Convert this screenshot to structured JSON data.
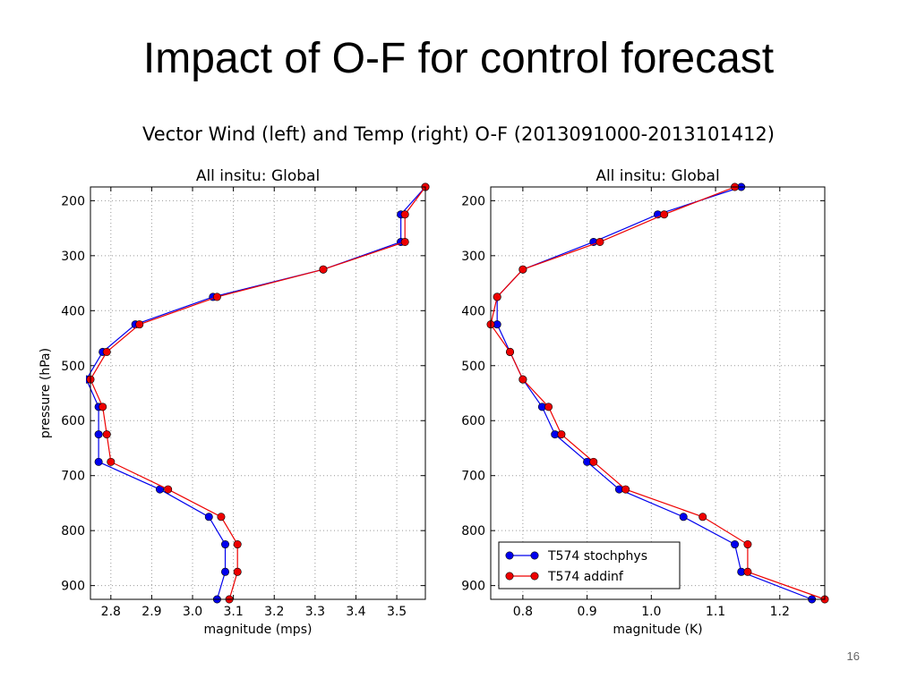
{
  "slide": {
    "title": "Impact of O-F for control forecast",
    "page_number": "16"
  },
  "figure": {
    "title": "Vector Wind (left) and Temp (right) O-F (2013091000-2013101412)"
  },
  "colors": {
    "series_blue": "#0000ee",
    "series_red": "#ee0000",
    "grid": "#999999"
  },
  "chart_data": [
    {
      "type": "line",
      "title": "All insitu: Global",
      "xlabel": "magnitude (mps)",
      "ylabel": "pressure (hPa)",
      "xlim": [
        2.75,
        3.57
      ],
      "ylim": [
        925,
        175
      ],
      "y_inverted": true,
      "grid": true,
      "xticks": [
        "2.8",
        "2.9",
        "3.0",
        "3.1",
        "3.2",
        "3.3",
        "3.4",
        "3.5"
      ],
      "yticks": [
        "200",
        "300",
        "400",
        "500",
        "600",
        "700",
        "800",
        "900"
      ],
      "series": [
        {
          "name": "T574 stochphys",
          "color": "#0000ee",
          "points": [
            [
              3.57,
              175
            ],
            [
              3.51,
              225
            ],
            [
              3.51,
              275
            ],
            [
              3.32,
              325
            ],
            [
              3.05,
              375
            ],
            [
              2.86,
              425
            ],
            [
              2.78,
              475
            ],
            [
              2.74,
              525
            ],
            [
              2.77,
              575
            ],
            [
              2.77,
              625
            ],
            [
              2.77,
              675
            ],
            [
              2.92,
              725
            ],
            [
              3.04,
              775
            ],
            [
              3.08,
              825
            ],
            [
              3.08,
              875
            ],
            [
              3.06,
              925
            ]
          ]
        },
        {
          "name": "T574 addinf",
          "color": "#ee0000",
          "points": [
            [
              3.57,
              175
            ],
            [
              3.52,
              225
            ],
            [
              3.52,
              275
            ],
            [
              3.32,
              325
            ],
            [
              3.06,
              375
            ],
            [
              2.87,
              425
            ],
            [
              2.79,
              475
            ],
            [
              2.75,
              525
            ],
            [
              2.78,
              575
            ],
            [
              2.79,
              625
            ],
            [
              2.8,
              675
            ],
            [
              2.94,
              725
            ],
            [
              3.07,
              775
            ],
            [
              3.11,
              825
            ],
            [
              3.11,
              875
            ],
            [
              3.09,
              925
            ]
          ]
        }
      ]
    },
    {
      "type": "line",
      "title": "All insitu: Global",
      "xlabel": "magnitude (K)",
      "ylabel": "",
      "xlim": [
        0.75,
        1.27
      ],
      "ylim": [
        925,
        175
      ],
      "y_inverted": true,
      "grid": true,
      "legend": "lower-left",
      "xticks": [
        "0.8",
        "0.9",
        "1.0",
        "1.1",
        "1.2"
      ],
      "yticks": [
        "200",
        "300",
        "400",
        "500",
        "600",
        "700",
        "800",
        "900"
      ],
      "series": [
        {
          "name": "T574 stochphys",
          "color": "#0000ee",
          "points": [
            [
              1.14,
              175
            ],
            [
              1.01,
              225
            ],
            [
              0.91,
              275
            ],
            [
              0.8,
              325
            ],
            [
              0.76,
              375
            ],
            [
              0.76,
              425
            ],
            [
              0.78,
              475
            ],
            [
              0.8,
              525
            ],
            [
              0.83,
              575
            ],
            [
              0.85,
              625
            ],
            [
              0.9,
              675
            ],
            [
              0.95,
              725
            ],
            [
              1.05,
              775
            ],
            [
              1.13,
              825
            ],
            [
              1.14,
              875
            ],
            [
              1.25,
              925
            ]
          ]
        },
        {
          "name": "T574 addinf",
          "color": "#ee0000",
          "points": [
            [
              1.13,
              175
            ],
            [
              1.02,
              225
            ],
            [
              0.92,
              275
            ],
            [
              0.8,
              325
            ],
            [
              0.76,
              375
            ],
            [
              0.75,
              425
            ],
            [
              0.78,
              475
            ],
            [
              0.8,
              525
            ],
            [
              0.84,
              575
            ],
            [
              0.86,
              625
            ],
            [
              0.91,
              675
            ],
            [
              0.96,
              725
            ],
            [
              1.08,
              775
            ],
            [
              1.15,
              825
            ],
            [
              1.15,
              875
            ],
            [
              1.27,
              925
            ]
          ]
        }
      ]
    }
  ]
}
